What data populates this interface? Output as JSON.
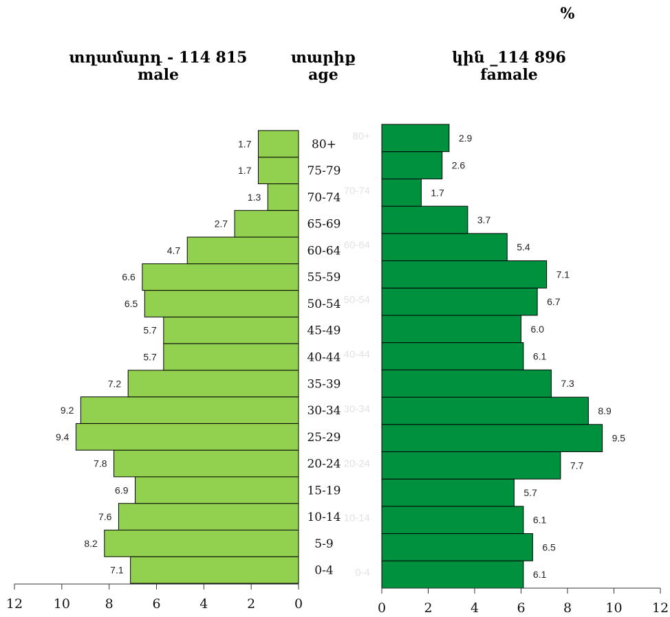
{
  "header": {
    "unit": "%",
    "male_title": "տղամարդ  - 114 815",
    "male_sub": "male",
    "age_title": "տարիք",
    "age_sub": "age",
    "female_title": "կին _114 896",
    "female_sub": "famale"
  },
  "chart_data": {
    "type": "bar",
    "orientation": "horizontal",
    "subtype": "population-pyramid",
    "categories": [
      "0-4",
      "5-9",
      "10-14",
      "15-19",
      "20-24",
      "25-29",
      "30-34",
      "35-39",
      "40-44",
      "45-49",
      "50-54",
      "55-59",
      "60-64",
      "65-69",
      "70-74",
      "75-79",
      "80+"
    ],
    "series": [
      {
        "name": "male",
        "values": [
          7.1,
          8.2,
          7.6,
          6.9,
          7.8,
          9.4,
          9.2,
          7.2,
          5.7,
          5.7,
          6.5,
          6.6,
          4.7,
          2.7,
          1.3,
          1.7,
          1.7
        ],
        "color": "#92d050"
      },
      {
        "name": "famale",
        "values": [
          6.1,
          6.5,
          6.1,
          5.7,
          7.7,
          9.5,
          8.9,
          7.3,
          6.1,
          6.0,
          6.7,
          7.1,
          5.4,
          3.7,
          1.7,
          2.6,
          2.9
        ],
        "color": "#00913f"
      }
    ],
    "xlim": [
      0,
      12
    ],
    "x_ticks": [
      0,
      2,
      4,
      6,
      8,
      10,
      12
    ],
    "ghost_labels": [
      "0-4",
      "10-14",
      "20-24",
      "30-34",
      "40-44",
      "50-54",
      "60-64",
      "70-74",
      "80+"
    ],
    "grid": false,
    "legend": "none"
  }
}
